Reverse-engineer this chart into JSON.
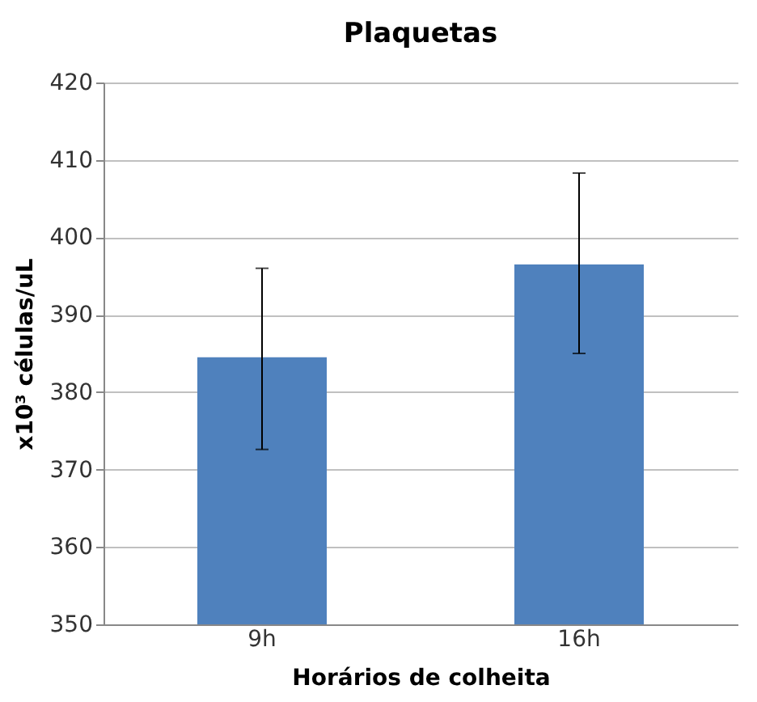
{
  "chart_data": {
    "type": "bar",
    "title": "Plaquetas",
    "xlabel": "Horários  de colheita",
    "ylabel": "x10³ células/uL",
    "categories": [
      "9h",
      "16h"
    ],
    "series": [
      {
        "color": "#4f81bd",
        "values": [
          384.5,
          396.5
        ],
        "errors": [
          [
            372.6,
            396.0
          ],
          [
            385.0,
            408.3
          ]
        ]
      }
    ],
    "ylim": [
      350,
      420
    ],
    "yticks": [
      350,
      360,
      370,
      380,
      390,
      400,
      410,
      420
    ],
    "grid": "y"
  }
}
